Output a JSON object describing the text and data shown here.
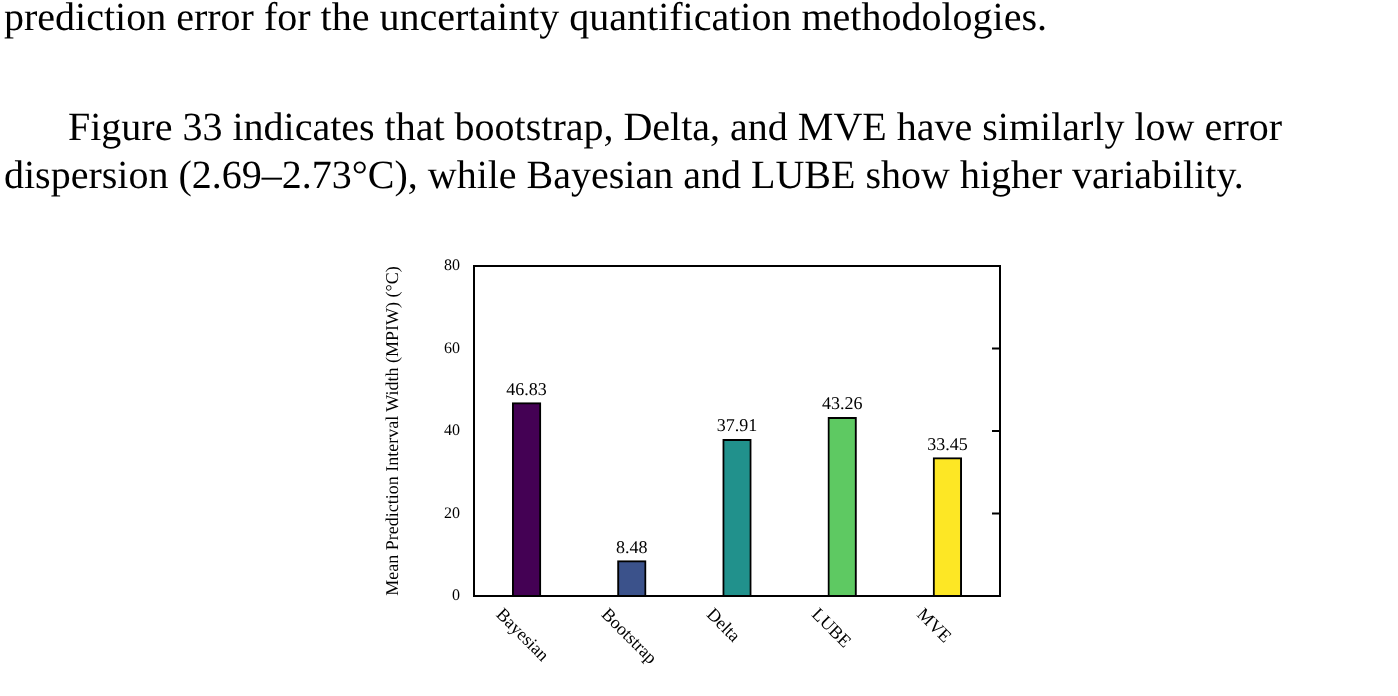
{
  "chart_data": {
    "type": "bar",
    "annotations": [
      "prediction error for the uncertainty quantification methodologies.",
      "Figure 33 indicates that bootstrap, Delta, and MVE have similarly low error dispersion (2.69–2.73°C), while Bayesian and LUBE show higher variability."
    ],
    "ylabel": "Mean Prediction Interval Width (MPIW) (°C)",
    "categories": [
      "Bayesian",
      "Bootstrap",
      "Delta",
      "LUBE",
      "MVE"
    ],
    "values": [
      46.83,
      8.48,
      37.91,
      43.26,
      33.45
    ],
    "colors": [
      "#440154",
      "#3b528b",
      "#21918c",
      "#5ec962",
      "#fde725"
    ],
    "ylim": [
      0,
      80
    ],
    "yticks": [
      0,
      20,
      40,
      60,
      80
    ],
    "data_labels": true,
    "grid": false,
    "legend": false
  }
}
